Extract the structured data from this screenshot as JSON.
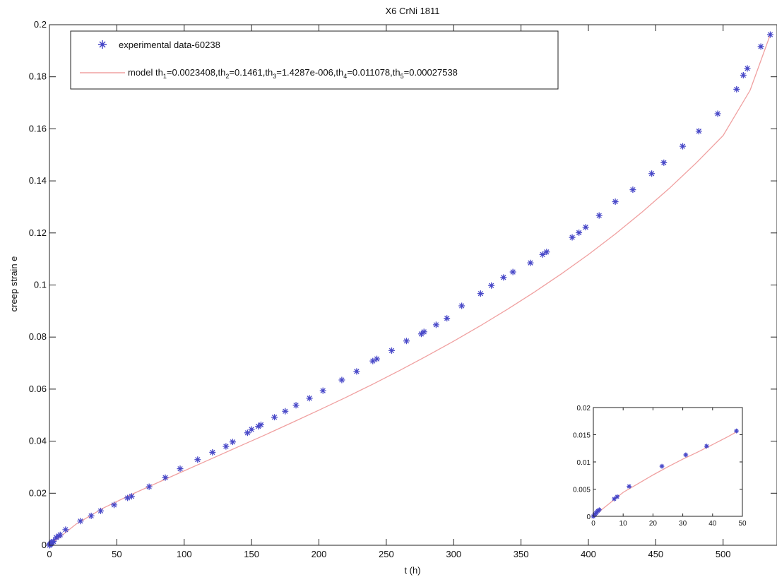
{
  "colors": {
    "marker": "#4848c8",
    "model_line": "#f0a0a0",
    "axis": "#222222",
    "background": "#ffffff"
  },
  "chart_data": [
    {
      "type": "scatter",
      "title": "X6 CrNi 1811",
      "xlabel": "t (h)",
      "ylabel": "creep strain e",
      "xlim": [
        0,
        540
      ],
      "ylim": [
        0,
        0.2
      ],
      "xticks": [
        0,
        50,
        100,
        150,
        200,
        250,
        300,
        350,
        400,
        450,
        500
      ],
      "yticks": [
        0,
        0.02,
        0.04,
        0.06,
        0.08,
        0.1,
        0.12,
        0.14,
        0.16,
        0.18,
        0.2
      ],
      "xtick_labels": [
        "0",
        "50",
        "100",
        "150",
        "200",
        "250",
        "300",
        "350",
        "400",
        "450",
        "500"
      ],
      "ytick_labels": [
        "0",
        "0.02",
        "0.04",
        "0.06",
        "0.08",
        "0.1",
        "0.12",
        "0.14",
        "0.16",
        "0.18",
        "0.2"
      ],
      "grid": false,
      "legend_position": "top-left",
      "legend": {
        "entry1": "experimental data-60238",
        "entry2": {
          "prefix": "model th",
          "s1": "1",
          "v1": "=0.0023408,th",
          "s2": "2",
          "v2": "=0.1461,th",
          "s3": "3",
          "v3": "=1.4287e-006,th",
          "s4": "4",
          "v4": "=0.011078,th",
          "s5": "5",
          "v5": "=0.00027538"
        }
      },
      "series": [
        {
          "name": "experimental data-60238",
          "marker": "star",
          "x": [
            0,
            0.5,
            1,
            1.5,
            2,
            3,
            5,
            7,
            8,
            12,
            23,
            31,
            38,
            48,
            58,
            61,
            74,
            86,
            97,
            110,
            121,
            131,
            136,
            147,
            150,
            155,
            157,
            167,
            175,
            183,
            193,
            203,
            217,
            228,
            240,
            243,
            254,
            265,
            276,
            278,
            287,
            295,
            306,
            320,
            328,
            337,
            344,
            357,
            366,
            369,
            388,
            393,
            398,
            408,
            420,
            433,
            447,
            456,
            470,
            482,
            496,
            510,
            515,
            518,
            528,
            535
          ],
          "y": [
            0,
            0.0003,
            0.0006,
            0.0009,
            0.0012,
            0.0015,
            0.003,
            0.0036,
            0.004,
            0.006,
            0.0093,
            0.0113,
            0.0132,
            0.0155,
            0.0182,
            0.0188,
            0.0225,
            0.026,
            0.0294,
            0.0329,
            0.0357,
            0.038,
            0.0397,
            0.0432,
            0.0445,
            0.0457,
            0.0463,
            0.0492,
            0.0515,
            0.0538,
            0.0565,
            0.0594,
            0.0635,
            0.0668,
            0.0708,
            0.0716,
            0.0748,
            0.0785,
            0.0812,
            0.082,
            0.0847,
            0.0872,
            0.092,
            0.0967,
            0.0998,
            0.1029,
            0.105,
            0.1085,
            0.1117,
            0.1127,
            0.1183,
            0.1201,
            0.1222,
            0.1267,
            0.132,
            0.1366,
            0.1428,
            0.147,
            0.1533,
            0.1591,
            0.1658,
            0.1752,
            0.1806,
            0.1832,
            0.1916,
            0.1962
          ]
        },
        {
          "name": "model",
          "line": true,
          "x": [
            0,
            20,
            40,
            60,
            80,
            100,
            120,
            140,
            160,
            180,
            200,
            220,
            240,
            260,
            280,
            300,
            320,
            340,
            360,
            380,
            400,
            420,
            440,
            460,
            480,
            500,
            520,
            535
          ],
          "y": [
            0,
            0.0082,
            0.0143,
            0.0193,
            0.024,
            0.0286,
            0.0332,
            0.0378,
            0.0424,
            0.0471,
            0.0519,
            0.0568,
            0.0619,
            0.0672,
            0.0727,
            0.0784,
            0.0844,
            0.0907,
            0.0973,
            0.1043,
            0.1117,
            0.1196,
            0.1281,
            0.1371,
            0.1469,
            0.1574,
            0.1748,
            0.1962
          ]
        }
      ]
    },
    {
      "type": "scatter",
      "title": "",
      "xlabel": "",
      "ylabel": "",
      "xlim": [
        0,
        50
      ],
      "ylim": [
        0,
        0.02
      ],
      "xticks": [
        0,
        10,
        20,
        30,
        40,
        50
      ],
      "yticks": [
        0,
        0.005,
        0.01,
        0.015,
        0.02
      ],
      "xtick_labels": [
        "0",
        "10",
        "20",
        "30",
        "40",
        "50"
      ],
      "ytick_labels": [
        "0",
        "0.005",
        "0.01",
        "0.015",
        "0.02"
      ],
      "grid": false,
      "legend_position": "none",
      "series": [
        {
          "marker": "star",
          "x": [
            0,
            0.3,
            0.6,
            0.9,
            1.2,
            1.5,
            2,
            7,
            8,
            12,
            23,
            31,
            38,
            48
          ],
          "y": [
            0,
            0.0002,
            0.0004,
            0.0006,
            0.0008,
            0.001,
            0.0012,
            0.0032,
            0.0036,
            0.0055,
            0.0092,
            0.0113,
            0.0129,
            0.0157
          ]
        },
        {
          "line": true,
          "x": [
            0,
            5,
            10,
            15,
            20,
            25,
            30,
            35,
            40,
            45,
            48
          ],
          "y": [
            0,
            0.0022,
            0.0044,
            0.006,
            0.0076,
            0.0091,
            0.0105,
            0.0118,
            0.0132,
            0.0146,
            0.0155
          ]
        }
      ]
    }
  ]
}
